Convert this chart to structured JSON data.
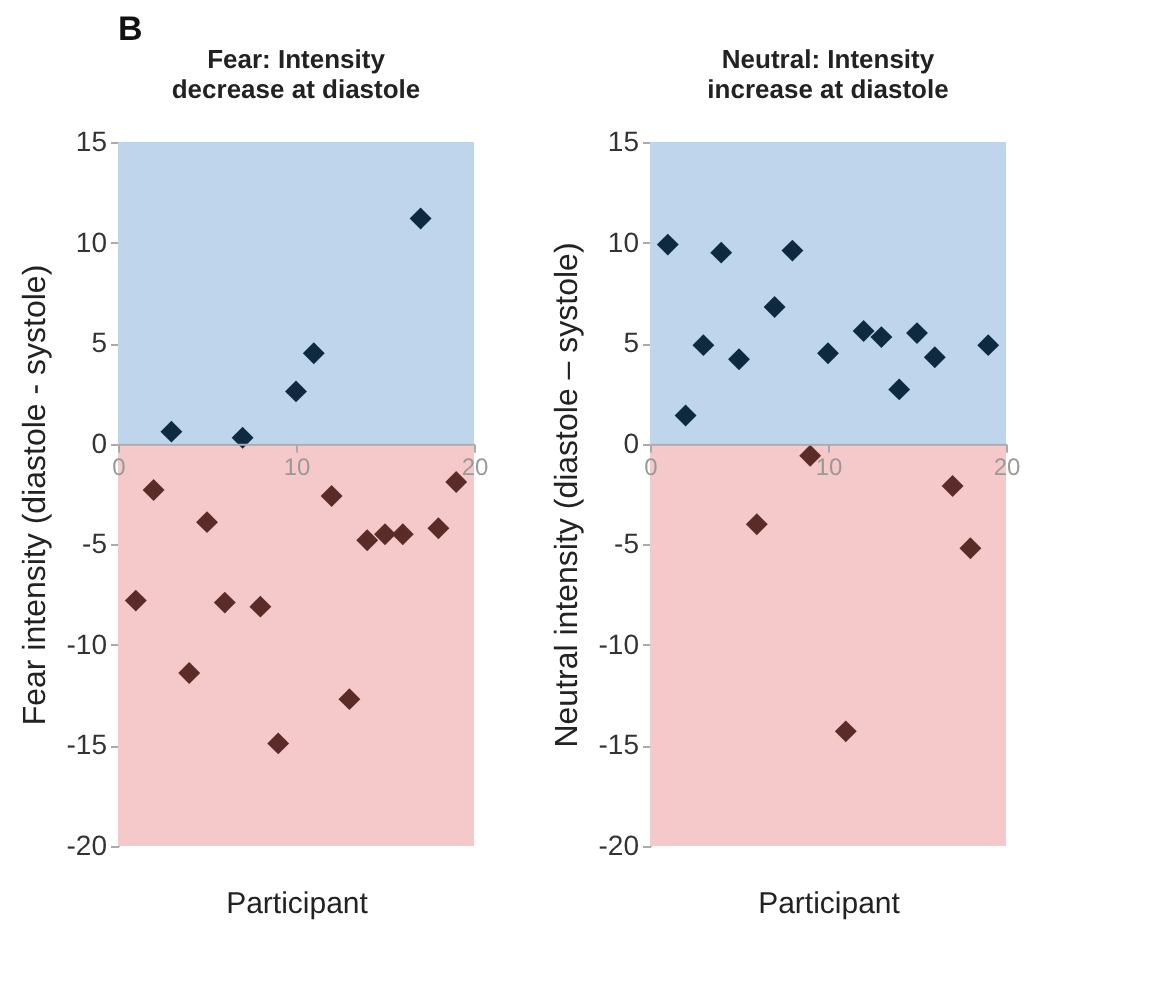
{
  "chart_data": [
    {
      "type": "scatter",
      "title": "Fear: Intensity decrease at diastole",
      "xlabel": "Participant",
      "ylabel": "Fear intensity (diastole - systole)",
      "annotations": [
        "B"
      ],
      "marker": "diamond",
      "xlim": [
        0,
        20
      ],
      "xticks": [
        0,
        10,
        20
      ],
      "ylim": [
        -20,
        15
      ],
      "yticks": [
        -20,
        -15,
        -10,
        -5,
        0,
        5,
        10,
        15
      ],
      "bands": [
        {
          "axis": "y",
          "from": 0,
          "to": 15,
          "color": "#bfd5ec"
        },
        {
          "axis": "y",
          "from": -20,
          "to": 0,
          "color": "#f5c9c9"
        }
      ],
      "series": [
        {
          "color": "#0e2a40",
          "x": [
            3,
            7,
            10,
            11,
            17
          ],
          "values": [
            0.6,
            0.3,
            2.6,
            4.5,
            11.2
          ]
        },
        {
          "color": "#5a2b27",
          "x": [
            1,
            2,
            4,
            5,
            6,
            8,
            9,
            12,
            13,
            14,
            15,
            16,
            18,
            19
          ],
          "values": [
            -7.8,
            -2.3,
            -11.4,
            -3.9,
            -7.9,
            -8.1,
            -14.9,
            -2.6,
            -12.7,
            -4.8,
            -4.5,
            -4.5,
            -4.2,
            -1.9
          ]
        }
      ]
    },
    {
      "type": "scatter",
      "title": "Neutral: Intensity increase at diastole",
      "xlabel": "Participant",
      "ylabel": "Neutral intensity (diastole – systole)",
      "marker": "diamond",
      "xlim": [
        0,
        20
      ],
      "xticks": [
        0,
        10,
        20
      ],
      "ylim": [
        -20,
        15
      ],
      "yticks": [
        -20,
        -15,
        -10,
        -5,
        0,
        5,
        10,
        15
      ],
      "bands": [
        {
          "axis": "y",
          "from": 0,
          "to": 15,
          "color": "#bfd5ec"
        },
        {
          "axis": "y",
          "from": -20,
          "to": 0,
          "color": "#f5c9c9"
        }
      ],
      "series": [
        {
          "color": "#0e2a40",
          "x": [
            1,
            2,
            3,
            4,
            5,
            7,
            8,
            10,
            12,
            13,
            14,
            15,
            16,
            19
          ],
          "values": [
            9.9,
            1.4,
            4.9,
            9.5,
            4.2,
            6.8,
            9.6,
            4.5,
            5.6,
            5.3,
            2.7,
            5.5,
            4.3,
            4.9
          ]
        },
        {
          "color": "#5a2b27",
          "x": [
            6,
            9,
            11,
            17,
            18
          ],
          "values": [
            -4.0,
            -0.6,
            -14.3,
            -2.1,
            -5.2
          ]
        }
      ]
    }
  ]
}
